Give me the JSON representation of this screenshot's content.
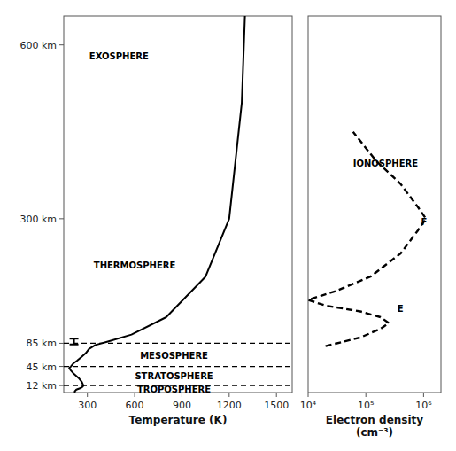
{
  "chart_data": [
    {
      "type": "line",
      "x_label": "Temperature (K)",
      "xlim": [
        150,
        1600
      ],
      "xticks": [
        300,
        600,
        900,
        1200,
        1500
      ],
      "ylim": [
        0,
        650
      ],
      "yticks": [
        {
          "value": 12,
          "label": "12 km"
        },
        {
          "value": 45,
          "label": "45 km"
        },
        {
          "value": 85,
          "label": "85 km"
        },
        {
          "value": 300,
          "label": "300 km"
        },
        {
          "value": 600,
          "label": "600 km"
        }
      ],
      "grid": false,
      "series": [
        {
          "color": "#000000",
          "line_style": "solid",
          "x": [
            220,
            220,
            230,
            260,
            270,
            275,
            265,
            245,
            215,
            195,
            185,
            195,
            210,
            235,
            265,
            290,
            310,
            350,
            430,
            580,
            800,
            1050,
            1200,
            1280,
            1300
          ],
          "values": [
            0,
            2,
            5,
            8,
            10,
            12,
            18,
            25,
            32,
            38,
            42,
            45,
            50,
            55,
            62,
            68,
            75,
            82,
            88,
            100,
            130,
            200,
            300,
            500,
            650
          ]
        }
      ],
      "hlines": [
        12,
        45,
        85
      ],
      "error_bars": [
        {
          "x": 215,
          "y": 88,
          "error": 5
        }
      ],
      "annotations": [
        {
          "text": "TROPOSPHERE",
          "x": 850,
          "y": 5
        },
        {
          "text": "STRATOSPHERE",
          "x": 850,
          "y": 28
        },
        {
          "text": "MESOSPHERE",
          "x": 850,
          "y": 63
        },
        {
          "text": "THERMOSPHERE",
          "x": 600,
          "y": 220
        },
        {
          "text": "EXOSPHERE",
          "x": 500,
          "y": 580
        }
      ]
    },
    {
      "type": "line",
      "log": "x",
      "x_label": [
        "Electron density",
        "(cm⁻³)"
      ],
      "xlim": [
        10000,
        2000000
      ],
      "xticks": [
        {
          "value": 10000,
          "label": "10⁴"
        },
        {
          "value": 100000,
          "label": "10⁵"
        },
        {
          "value": 1000000,
          "label": "10⁶"
        }
      ],
      "ylim": [
        0,
        650
      ],
      "tick_labels": "x",
      "grid": false,
      "series": [
        {
          "color": "#000000",
          "line_style": "dashed",
          "x": [
            20000,
            80000,
            180000,
            250000,
            180000,
            80000,
            20000,
            10000,
            30000,
            120000,
            400000,
            800000,
            1100000,
            800000,
            400000,
            150000,
            60000
          ],
          "values": [
            80,
            95,
            110,
            120,
            130,
            140,
            150,
            160,
            175,
            200,
            240,
            280,
            300,
            320,
            360,
            400,
            450
          ]
        }
      ],
      "annotations": [
        {
          "text": "IONOSPHERE",
          "x": 60000,
          "y": 395
        },
        {
          "text": "E",
          "x": 350000,
          "y": 145
        },
        {
          "text": "F",
          "x": 900000,
          "y": 295
        }
      ]
    }
  ]
}
